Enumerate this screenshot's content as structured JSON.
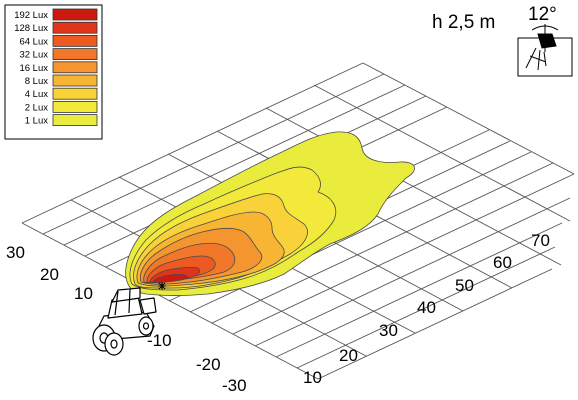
{
  "mounting": {
    "height_label": "h 2,5 m",
    "tilt_label": "12°"
  },
  "legend": [
    {
      "label": "192 Lux",
      "color": "#cc1a10"
    },
    {
      "label": "128 Lux",
      "color": "#e0341c"
    },
    {
      "label": "64 Lux",
      "color": "#ec5a22"
    },
    {
      "label": "32 Lux",
      "color": "#f1772a"
    },
    {
      "label": "16 Lux",
      "color": "#f4952f"
    },
    {
      "label": "8 Lux",
      "color": "#f7b533"
    },
    {
      "label": "4 Lux",
      "color": "#f8d238"
    },
    {
      "label": "2 Lux",
      "color": "#f3e93a"
    },
    {
      "label": "1 Lux",
      "color": "#e9ec3c"
    }
  ],
  "axes": {
    "lateral_ticks": [
      "30",
      "20",
      "10",
      "-10",
      "-20",
      "-30"
    ],
    "distance_ticks": [
      "10",
      "20",
      "30",
      "40",
      "50",
      "60",
      "70"
    ]
  }
}
